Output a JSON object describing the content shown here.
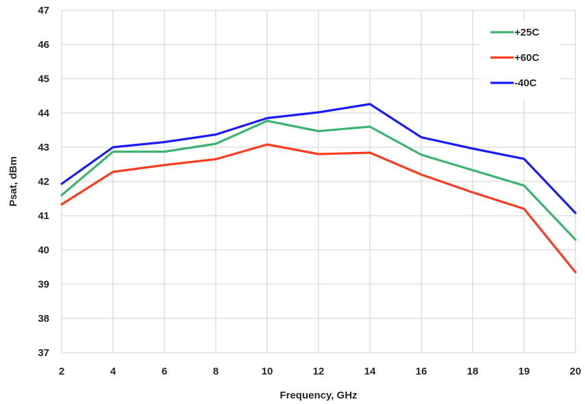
{
  "chart_data": {
    "type": "line",
    "title": "",
    "xlabel": "Frequency, GHz",
    "ylabel": "Psat, dBm",
    "x": [
      2,
      4,
      6,
      8,
      10,
      12,
      14,
      16,
      18,
      19,
      20
    ],
    "x_tick_labels": [
      "2",
      "4",
      "6",
      "8",
      "10",
      "12",
      "14",
      "16",
      "18",
      "19",
      "20"
    ],
    "ylim": [
      37,
      47
    ],
    "y_ticks": [
      37,
      38,
      39,
      40,
      41,
      42,
      43,
      44,
      45,
      46,
      47
    ],
    "grid": true,
    "legend_position": "top-right",
    "series": [
      {
        "name": "+25C",
        "color": "#3cb371",
        "values": [
          41.6,
          42.87,
          42.87,
          43.1,
          43.77,
          43.47,
          43.6,
          42.78,
          42.33,
          41.88,
          40.3
        ]
      },
      {
        "name": "+60C",
        "color": "#ff3b1f",
        "values": [
          41.33,
          42.28,
          42.48,
          42.65,
          43.08,
          42.8,
          42.84,
          42.2,
          41.68,
          41.2,
          39.35
        ]
      },
      {
        "name": "-40C",
        "color": "#1a1aff",
        "values": [
          41.93,
          43.0,
          43.15,
          43.37,
          43.85,
          44.02,
          44.26,
          43.29,
          42.96,
          42.66,
          41.08
        ]
      }
    ]
  }
}
